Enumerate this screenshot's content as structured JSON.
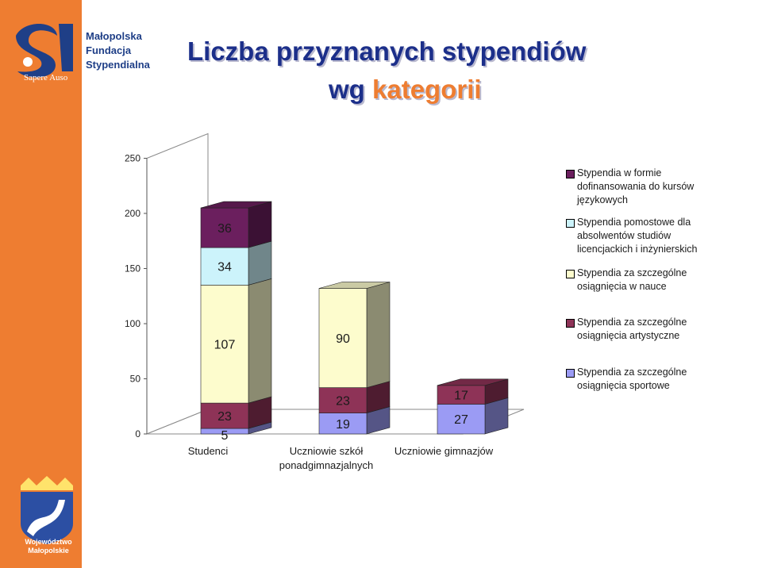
{
  "header": {
    "title_line1": "Liczba przyznanych stypendiów",
    "title_line2_prefix": "wg ",
    "title_line2_accent": "kategorii"
  },
  "branding": {
    "top_logo_lines": [
      "Małopolska",
      "Fundacja",
      "Stypendialna"
    ],
    "top_logo_caption": "Sapere Auso",
    "bottom_logo_lines": [
      "Województwo",
      "Małopolskie"
    ]
  },
  "colors": {
    "sidebar": "#ee7d31",
    "title": "#1c2f8a",
    "accent": "#ee7d31",
    "language": "#6b1f5e",
    "postgrad": "#ccf3fb",
    "science": "#fdfccd",
    "art": "#8e3357",
    "sport": "#9b9bf4"
  },
  "chart_data": {
    "type": "bar",
    "stacked": true,
    "three_d": true,
    "categories": [
      "Studenci",
      "Uczniowie szkół ponadgimnazjalnych",
      "Uczniowie gimnazjów"
    ],
    "category_lines": [
      [
        "Studenci"
      ],
      [
        "Uczniowie szkół",
        "ponadgimnazjalnych"
      ],
      [
        "Uczniowie gimnazjów"
      ]
    ],
    "ylim": [
      0,
      250
    ],
    "yticks": [
      0,
      50,
      100,
      150,
      200,
      250
    ],
    "legend_position": "right",
    "series": [
      {
        "name": "Stypendia za szczególne osiągnięcia sportowe",
        "legend_lines": [
          "Stypendia za szczególne",
          "osiągnięcia sportowe"
        ],
        "color": "#9b9bf4",
        "values": [
          5,
          19,
          27
        ]
      },
      {
        "name": "Stypendia za szczególne osiągnięcia artystyczne",
        "legend_lines": [
          "Stypendia za szczególne",
          "osiągnięcia artystyczne"
        ],
        "color": "#8e3357",
        "values": [
          23,
          23,
          17
        ]
      },
      {
        "name": "Stypendia za szczególne osiągnięcia w nauce",
        "legend_lines": [
          "Stypendia za szczególne",
          "osiągnięcia w nauce"
        ],
        "color": "#fdfccd",
        "values": [
          107,
          90,
          0
        ]
      },
      {
        "name": "Stypendia pomostowe dla absolwentów studiów licencjackich i inżynierskich",
        "legend_lines": [
          "Stypendia pomostowe dla",
          "absolwentów studiów",
          "licencjackich i inżynierskich"
        ],
        "color": "#ccf3fb",
        "values": [
          34,
          0,
          0
        ]
      },
      {
        "name": "Stypendia w formie dofinansowania do kursów językowych",
        "legend_lines": [
          "Stypendia w formie",
          "dofinansowania do kursów",
          "językowych"
        ],
        "color": "#6b1f5e",
        "values": [
          36,
          0,
          0
        ]
      }
    ],
    "legend_order": [
      4,
      3,
      2,
      1,
      0
    ]
  }
}
